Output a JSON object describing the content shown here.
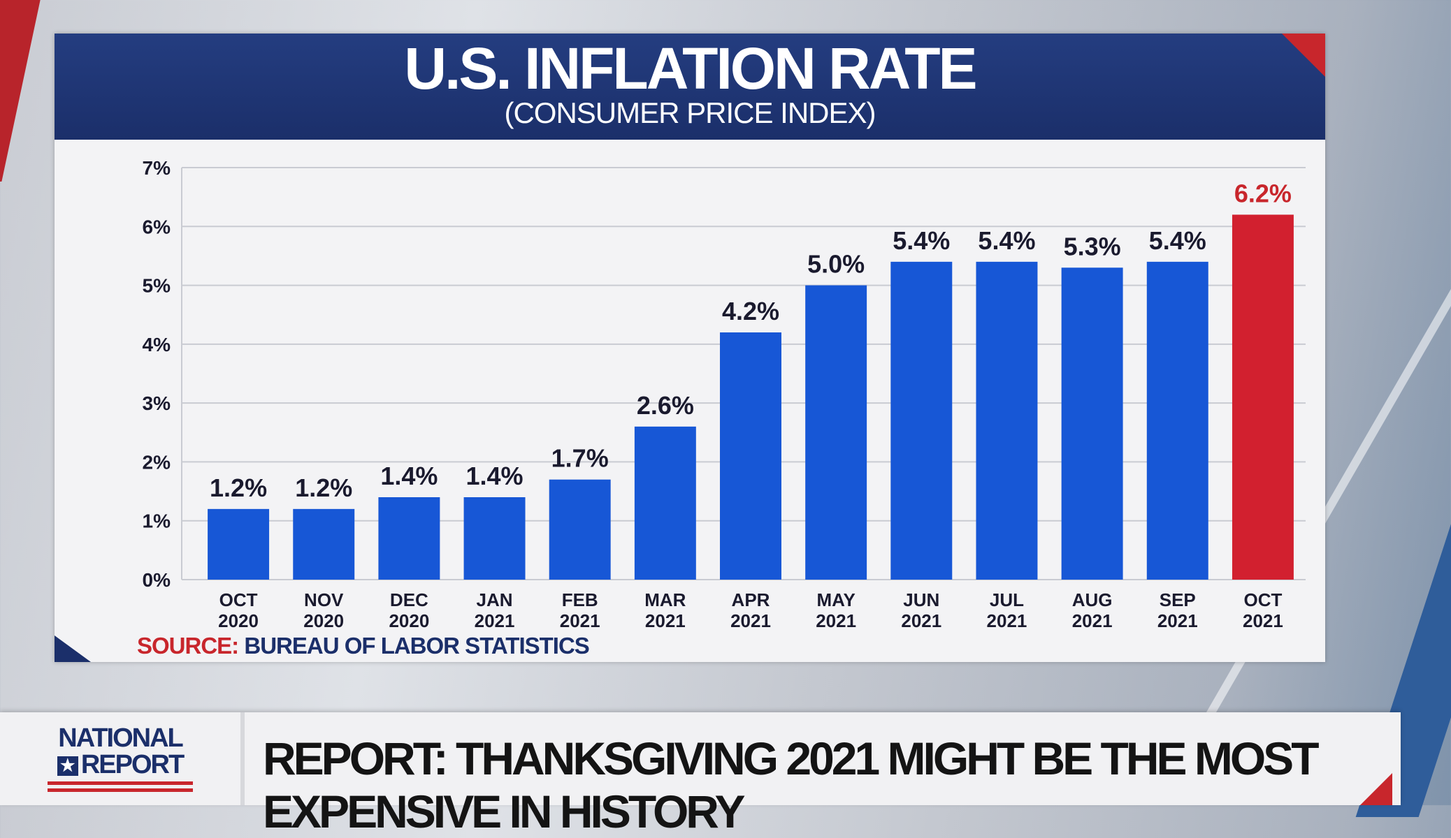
{
  "chart_data": {
    "type": "bar",
    "title": "U.S. INFLATION RATE",
    "subtitle": "(CONSUMER PRICE INDEX)",
    "categories": [
      [
        "OCT",
        "2020"
      ],
      [
        "NOV",
        "2020"
      ],
      [
        "DEC",
        "2020"
      ],
      [
        "JAN",
        "2021"
      ],
      [
        "FEB",
        "2021"
      ],
      [
        "MAR",
        "2021"
      ],
      [
        "APR",
        "2021"
      ],
      [
        "MAY",
        "2021"
      ],
      [
        "JUN",
        "2021"
      ],
      [
        "JUL",
        "2021"
      ],
      [
        "AUG",
        "2021"
      ],
      [
        "SEP",
        "2021"
      ],
      [
        "OCT",
        "2021"
      ]
    ],
    "values": [
      1.2,
      1.2,
      1.4,
      1.4,
      1.7,
      2.6,
      4.2,
      5.0,
      5.4,
      5.4,
      5.3,
      5.4,
      6.2
    ],
    "data_labels": [
      "1.2%",
      "1.2%",
      "1.4%",
      "1.4%",
      "1.7%",
      "2.6%",
      "4.2%",
      "5.0%",
      "5.4%",
      "5.4%",
      "5.3%",
      "5.4%",
      "6.2%"
    ],
    "highlight_index": 12,
    "ylim": [
      0,
      7
    ],
    "yticks": [
      0,
      1,
      2,
      3,
      4,
      5,
      6,
      7
    ],
    "ytick_labels": [
      "0%",
      "1%",
      "2%",
      "3%",
      "4%",
      "5%",
      "6%",
      "7%"
    ],
    "grid": true,
    "colors": {
      "bar": "#1757d6",
      "highlight": "#d2202f",
      "label": "#1a1a2e",
      "highlight_label": "#c8262c"
    }
  },
  "source": {
    "label": "SOURCE:",
    "text": "BUREAU OF LABOR STATISTICS"
  },
  "ticker": {
    "logo_line1": "NATIONAL",
    "logo_star": "★",
    "logo_line2": "REPORT",
    "headline": "REPORT: THANKSGIVING 2021 MIGHT BE THE MOST EXPENSIVE IN HISTORY"
  },
  "colors": {
    "navy": "#1b2f6a",
    "red": "#c8262c"
  }
}
